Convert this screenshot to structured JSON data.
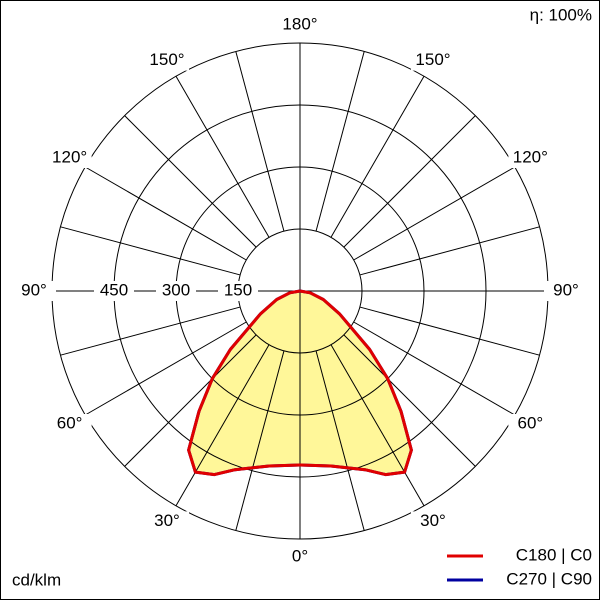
{
  "chart_data": {
    "type": "polar",
    "annotation": "η: 100%",
    "unit_label": "cd/klm",
    "rlim": [
      0,
      600
    ],
    "rticks": [
      150,
      300,
      450
    ],
    "agrid": [
      0,
      15,
      30,
      45,
      60,
      75,
      90,
      105,
      120,
      135,
      150,
      165,
      180
    ],
    "aticks": [
      {
        "value": 0,
        "label": "0°"
      },
      {
        "value": 30,
        "label": "30°"
      },
      {
        "value": 60,
        "label": "60°"
      },
      {
        "value": 90,
        "label": "90°"
      },
      {
        "value": 120,
        "label": "120°"
      },
      {
        "value": 150,
        "label": "150°"
      },
      {
        "value": 180,
        "label": "180°"
      }
    ],
    "angles": [
      0,
      10,
      20,
      25,
      30,
      35,
      40,
      45,
      50,
      60,
      70,
      80,
      90
    ],
    "fill": "#fff799",
    "series": [
      {
        "name": "C270 | C90",
        "color": "#0000a0",
        "values": [
          421,
          430,
          460,
          490,
          506,
          470,
          380,
          300,
          220,
          110,
          60,
          25,
          0
        ]
      },
      {
        "name": "C180 | C0",
        "color": "#e00000",
        "values": [
          421,
          430,
          460,
          490,
          506,
          470,
          380,
          300,
          220,
          110,
          60,
          25,
          0
        ]
      }
    ]
  }
}
